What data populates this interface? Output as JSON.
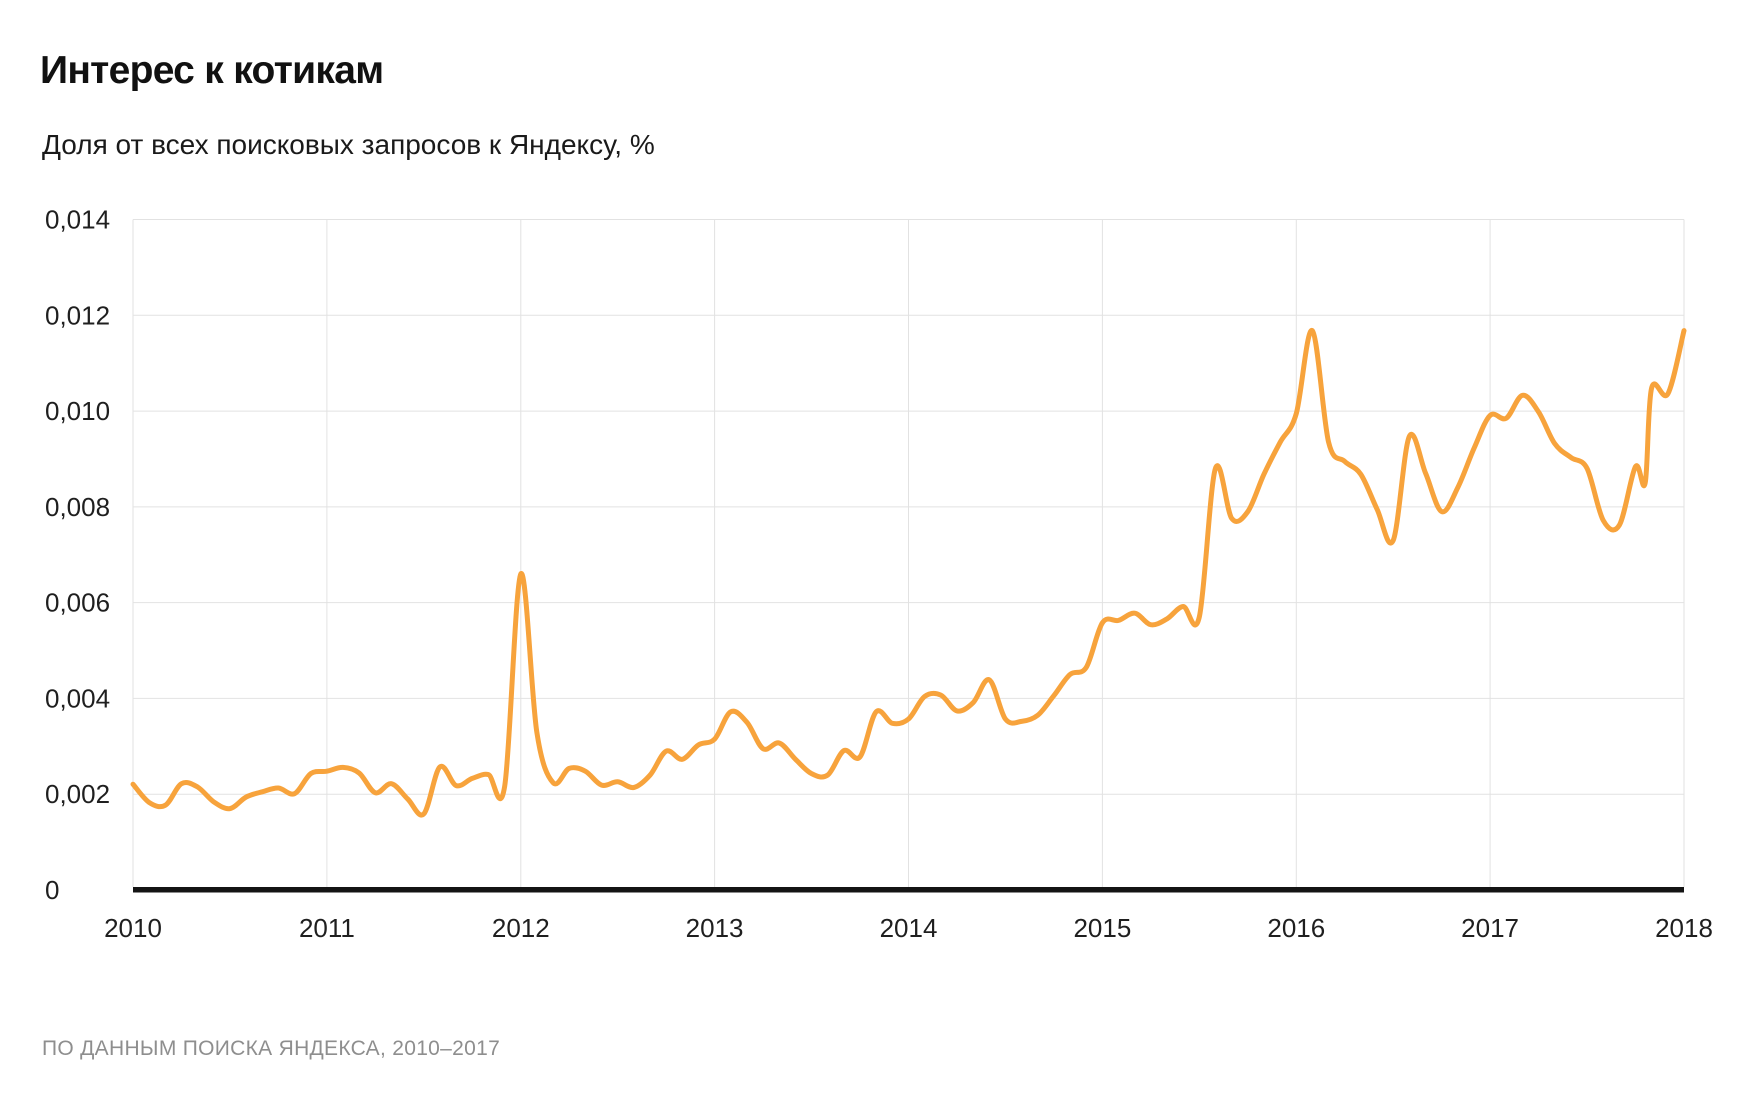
{
  "header": {
    "title": "Интерес к котикам",
    "subtitle": "Доля от всех поисковых запросов к Яндексу, %"
  },
  "footer": {
    "source": "ПО ДАННЫМ ПОИСКА ЯНДЕКСА, 2010–2017"
  },
  "chart_data": {
    "type": "line",
    "title": "Интерес к котикам",
    "ylabel": "Доля от всех поисковых запросов к Яндексу, %",
    "xlim": [
      2010,
      2018
    ],
    "ylim": [
      0,
      0.014
    ],
    "grid": true,
    "legend": "none",
    "line_color": "#F7A33C",
    "grid_color": "#e2e2e2",
    "axis_color": "#141414",
    "x_ticks": [
      {
        "value": 2010,
        "label": "2010"
      },
      {
        "value": 2011,
        "label": "2011"
      },
      {
        "value": 2012,
        "label": "2012"
      },
      {
        "value": 2013,
        "label": "2013"
      },
      {
        "value": 2014,
        "label": "2014"
      },
      {
        "value": 2015,
        "label": "2015"
      },
      {
        "value": 2016,
        "label": "2016"
      },
      {
        "value": 2017,
        "label": "2017"
      },
      {
        "value": 2018,
        "label": "2018"
      }
    ],
    "y_ticks": [
      {
        "value": 0,
        "label": "0"
      },
      {
        "value": 0.002,
        "label": "0,002"
      },
      {
        "value": 0.004,
        "label": "0,004"
      },
      {
        "value": 0.006,
        "label": "0,006"
      },
      {
        "value": 0.008,
        "label": "0,008"
      },
      {
        "value": 0.01,
        "label": "0,010"
      },
      {
        "value": 0.012,
        "label": "0,012"
      },
      {
        "value": 0.014,
        "label": "0,014"
      }
    ],
    "series": [
      {
        "points": [
          [
            2010.0,
            0.00221
          ],
          [
            2010.083,
            0.00183
          ],
          [
            2010.167,
            0.00177
          ],
          [
            2010.25,
            0.00222
          ],
          [
            2010.333,
            0.00215
          ],
          [
            2010.417,
            0.00184
          ],
          [
            2010.5,
            0.0017
          ],
          [
            2010.583,
            0.00194
          ],
          [
            2010.667,
            0.00205
          ],
          [
            2010.75,
            0.00213
          ],
          [
            2010.833,
            0.00201
          ],
          [
            2010.917,
            0.00243
          ],
          [
            2011.0,
            0.00248
          ],
          [
            2011.083,
            0.00256
          ],
          [
            2011.167,
            0.00244
          ],
          [
            2011.25,
            0.00203
          ],
          [
            2011.333,
            0.00222
          ],
          [
            2011.417,
            0.0019
          ],
          [
            2011.5,
            0.00159
          ],
          [
            2011.583,
            0.00257
          ],
          [
            2011.667,
            0.00218
          ],
          [
            2011.75,
            0.00233
          ],
          [
            2011.833,
            0.00241
          ],
          [
            2011.917,
            0.00217
          ],
          [
            2012.0,
            0.0066
          ],
          [
            2012.083,
            0.0033
          ],
          [
            2012.167,
            0.00224
          ],
          [
            2012.25,
            0.00254
          ],
          [
            2012.333,
            0.00248
          ],
          [
            2012.417,
            0.00219
          ],
          [
            2012.5,
            0.00226
          ],
          [
            2012.583,
            0.00214
          ],
          [
            2012.667,
            0.0024
          ],
          [
            2012.75,
            0.0029
          ],
          [
            2012.833,
            0.00273
          ],
          [
            2012.917,
            0.00303
          ],
          [
            2013.0,
            0.00315
          ],
          [
            2013.083,
            0.00372
          ],
          [
            2013.167,
            0.0035
          ],
          [
            2013.25,
            0.00295
          ],
          [
            2013.333,
            0.00307
          ],
          [
            2013.417,
            0.00273
          ],
          [
            2013.5,
            0.00243
          ],
          [
            2013.583,
            0.0024
          ],
          [
            2013.667,
            0.00291
          ],
          [
            2013.75,
            0.00278
          ],
          [
            2013.833,
            0.00372
          ],
          [
            2013.917,
            0.00348
          ],
          [
            2014.0,
            0.00357
          ],
          [
            2014.083,
            0.00404
          ],
          [
            2014.167,
            0.00407
          ],
          [
            2014.25,
            0.00374
          ],
          [
            2014.333,
            0.00391
          ],
          [
            2014.417,
            0.00439
          ],
          [
            2014.5,
            0.00357
          ],
          [
            2014.583,
            0.00352
          ],
          [
            2014.667,
            0.00365
          ],
          [
            2014.75,
            0.00406
          ],
          [
            2014.833,
            0.0045
          ],
          [
            2014.917,
            0.00465
          ],
          [
            2015.0,
            0.00558
          ],
          [
            2015.083,
            0.00563
          ],
          [
            2015.167,
            0.00578
          ],
          [
            2015.25,
            0.00554
          ],
          [
            2015.333,
            0.00566
          ],
          [
            2015.417,
            0.00592
          ],
          [
            2015.5,
            0.0057
          ],
          [
            2015.583,
            0.0088
          ],
          [
            2015.667,
            0.00776
          ],
          [
            2015.75,
            0.0079
          ],
          [
            2015.833,
            0.00868
          ],
          [
            2015.917,
            0.00935
          ],
          [
            2016.0,
            0.00995
          ],
          [
            2016.083,
            0.01168
          ],
          [
            2016.167,
            0.00935
          ],
          [
            2016.25,
            0.00895
          ],
          [
            2016.333,
            0.00868
          ],
          [
            2016.417,
            0.00795
          ],
          [
            2016.5,
            0.0073
          ],
          [
            2016.583,
            0.00947
          ],
          [
            2016.667,
            0.0087
          ],
          [
            2016.75,
            0.0079
          ],
          [
            2016.833,
            0.0084
          ],
          [
            2016.917,
            0.00922
          ],
          [
            2017.0,
            0.00991
          ],
          [
            2017.083,
            0.00985
          ],
          [
            2017.167,
            0.01033
          ],
          [
            2017.25,
            0.00998
          ],
          [
            2017.333,
            0.00932
          ],
          [
            2017.417,
            0.00903
          ],
          [
            2017.5,
            0.0088
          ],
          [
            2017.583,
            0.00772
          ],
          [
            2017.667,
            0.00762
          ],
          [
            2017.75,
            0.00884
          ],
          [
            2017.8,
            0.0085
          ],
          [
            2017.833,
            0.01048
          ],
          [
            2017.917,
            0.01036
          ],
          [
            2018.0,
            0.01168
          ]
        ]
      }
    ]
  }
}
